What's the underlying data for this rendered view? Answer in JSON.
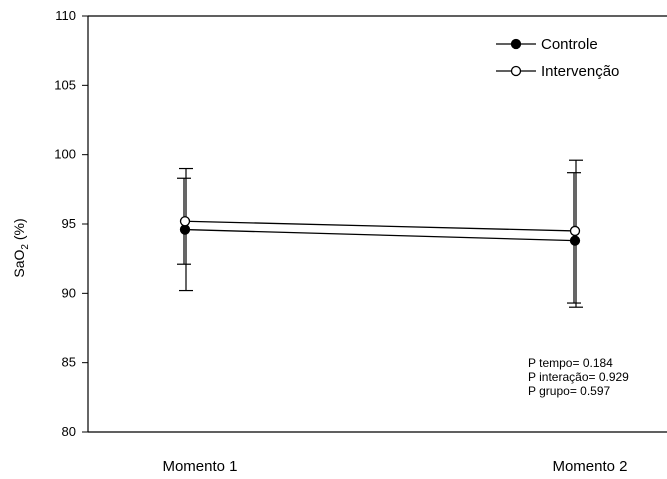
{
  "chart_data": {
    "type": "line",
    "categories": [
      "Momento 1",
      "Momento 2"
    ],
    "ylabel_main": "SaO",
    "ylabel_sub": "2",
    "ylabel_unit": " (%)",
    "ylim": [
      80,
      110
    ],
    "yticks": [
      80,
      85,
      90,
      95,
      100,
      105,
      110
    ],
    "grid": false,
    "legend_position": "top-right",
    "series": [
      {
        "name": "Controle",
        "marker": "filled-circle",
        "color": "#000000",
        "values": [
          94.6,
          93.8
        ],
        "err_low": [
          92.1,
          89.3
        ],
        "err_high": [
          98.3,
          98.7
        ]
      },
      {
        "name": "Intervenção",
        "marker": "open-circle",
        "color": "#000000",
        "values": [
          95.2,
          94.5
        ],
        "err_low": [
          90.2,
          89.0
        ],
        "err_high": [
          99.0,
          99.6
        ]
      }
    ],
    "annotations": [
      "P tempo= 0.184",
      "P interação= 0.929",
      "P grupo= 0.597"
    ]
  }
}
